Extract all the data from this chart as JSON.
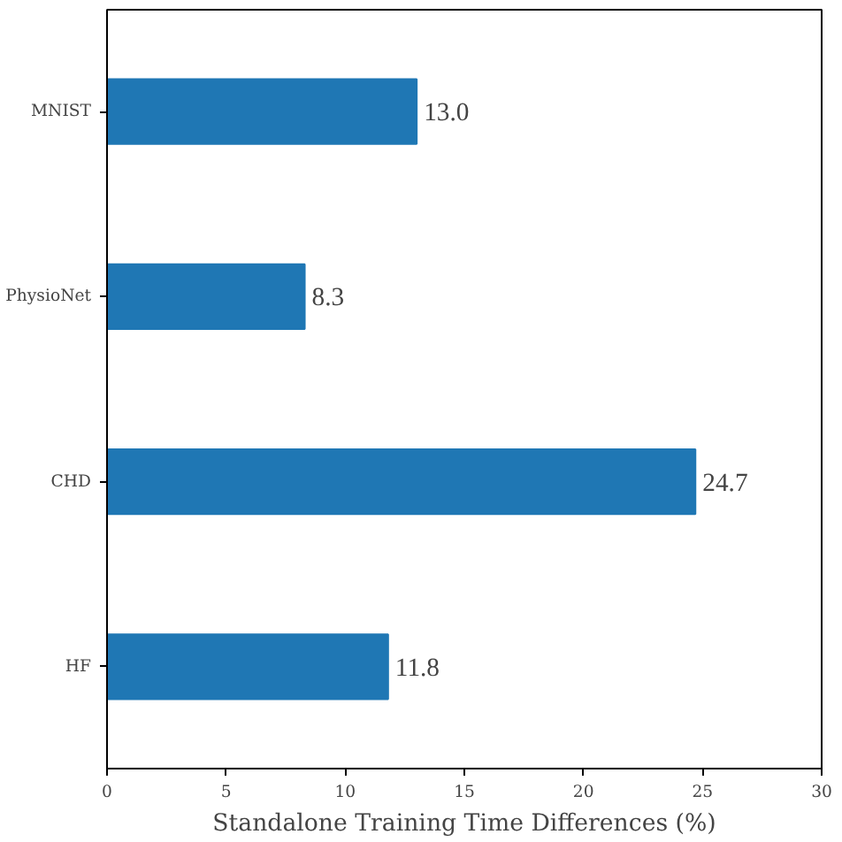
{
  "chart_data": {
    "type": "bar",
    "orientation": "horizontal",
    "categories": [
      "MNIST",
      "PhysioNet",
      "CHD",
      "HF"
    ],
    "values": [
      13.0,
      8.3,
      24.7,
      11.8
    ],
    "value_labels": [
      "13.0",
      "8.3",
      "24.7",
      "11.8"
    ],
    "color": "#1f77b4",
    "xlabel": "Standalone Training Time Differences (%)",
    "xlim": [
      0,
      30
    ],
    "xticks": [
      0,
      5,
      10,
      15,
      20,
      25,
      30
    ],
    "grid": false
  }
}
